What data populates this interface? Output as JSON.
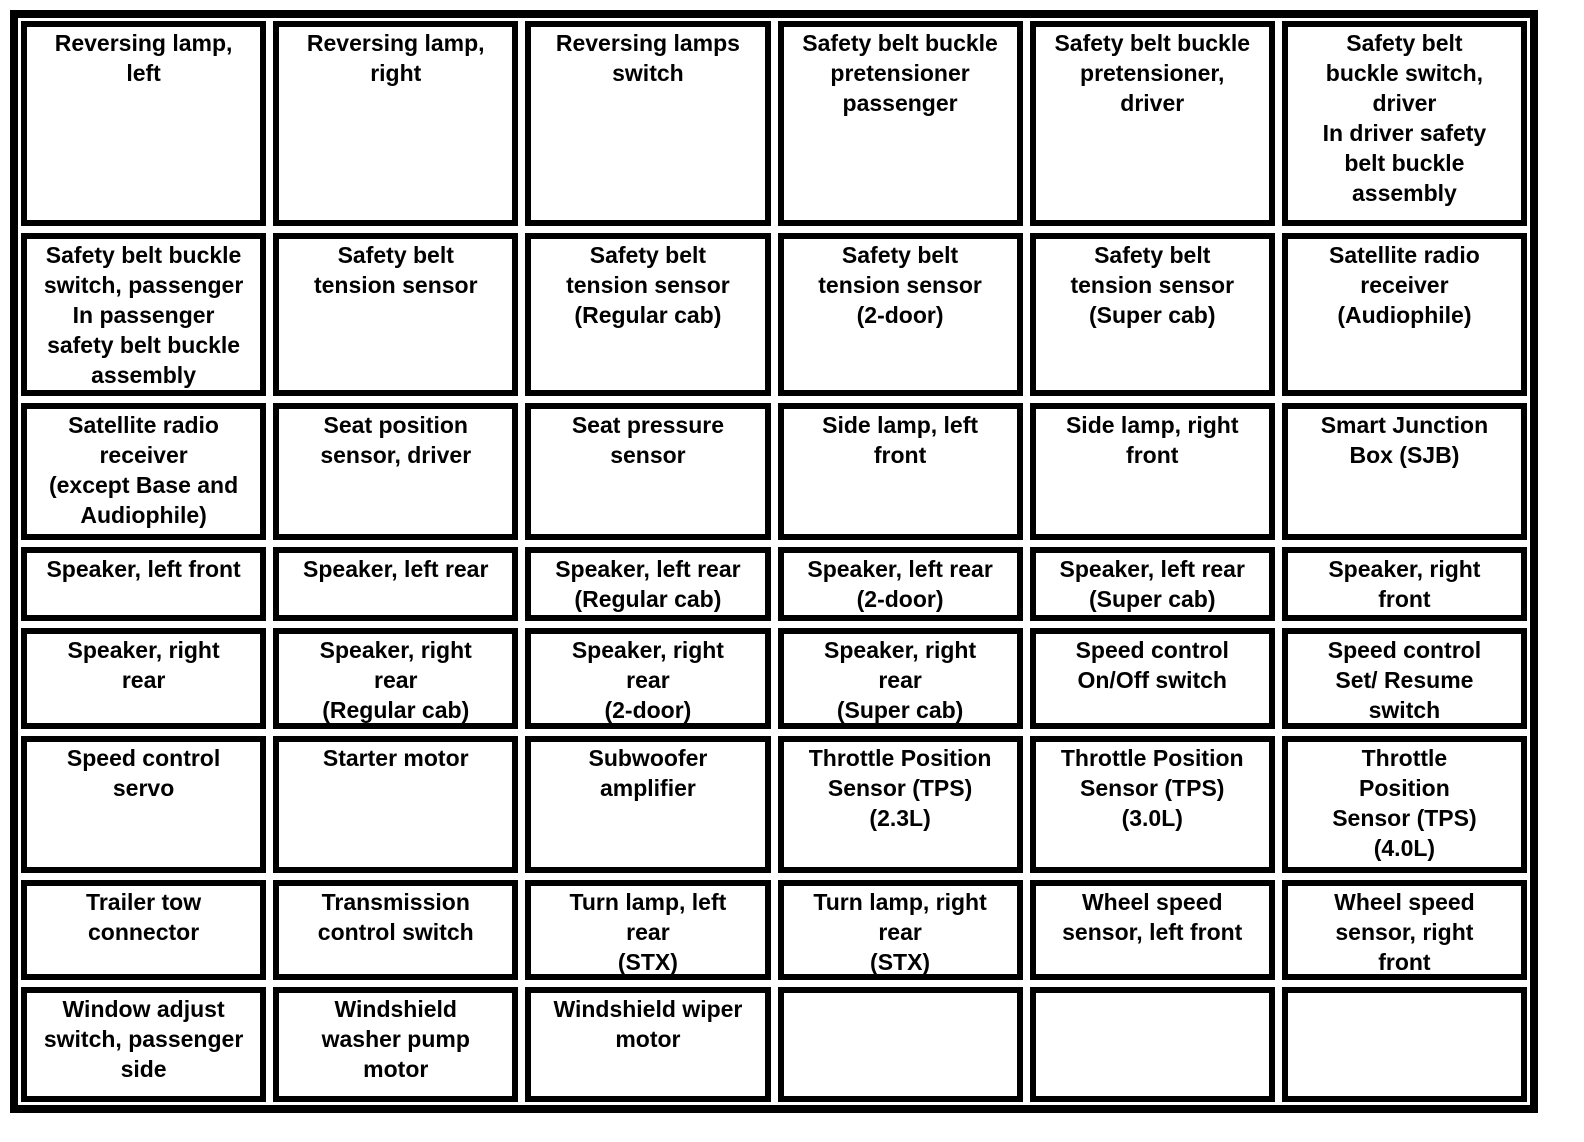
{
  "colors": {
    "frame_border": "#000000",
    "cell_border": "#000000",
    "cell_background": "#ffffff",
    "text": "#000000"
  },
  "table": {
    "rows": [
      {
        "cells": [
          "Reversing lamp,\nleft",
          "Reversing lamp,\nright",
          "Reversing lamps\nswitch",
          "Safety belt buckle\npretensioner\npassenger",
          "Safety belt buckle\npretensioner,\ndriver",
          "Safety belt\nbuckle switch,\ndriver\nIn driver safety\nbelt buckle\nassembly"
        ]
      },
      {
        "cells": [
          "Safety belt buckle\nswitch, passenger\nIn passenger\nsafety belt buckle\nassembly",
          "Safety belt\ntension sensor",
          "Safety belt\ntension sensor\n(Regular cab)",
          "Safety belt\ntension sensor\n(2-door)",
          "Safety belt\ntension sensor\n(Super cab)",
          "Satellite radio\nreceiver\n(Audiophile)"
        ]
      },
      {
        "cells": [
          "Satellite radio\nreceiver\n(except Base and\nAudiophile)",
          "Seat position\nsensor, driver",
          "Seat pressure\nsensor",
          "Side lamp, left\nfront",
          "Side lamp, right\nfront",
          "Smart Junction\nBox (SJB)"
        ]
      },
      {
        "cells": [
          "Speaker, left front",
          "Speaker, left rear",
          "Speaker, left rear\n(Regular cab)",
          "Speaker, left rear\n(2-door)",
          "Speaker, left rear\n(Super cab)",
          "Speaker, right\nfront"
        ]
      },
      {
        "cells": [
          "Speaker, right\nrear",
          "Speaker, right\nrear\n(Regular cab)",
          "Speaker, right\nrear\n(2-door)",
          "Speaker, right\nrear\n(Super cab)",
          "Speed control\nOn/Off switch",
          "Speed control\nSet/ Resume\nswitch"
        ]
      },
      {
        "cells": [
          "Speed control\nservo",
          "Starter motor",
          "Subwoofer\namplifier",
          "Throttle Position\nSensor (TPS)\n(2.3L)",
          "Throttle Position\nSensor (TPS)\n(3.0L)",
          "Throttle\nPosition\nSensor (TPS)\n(4.0L)"
        ]
      },
      {
        "cells": [
          "Trailer tow\nconnector",
          "Transmission\ncontrol switch",
          "Turn lamp, left\nrear\n(STX)",
          "Turn lamp, right\nrear\n(STX)",
          "Wheel speed\nsensor, left front",
          "Wheel speed\nsensor, right\nfront"
        ]
      },
      {
        "cells": [
          "Window adjust\nswitch, passenger\nside",
          "Windshield\nwasher pump\nmotor",
          "Windshield wiper\nmotor",
          "",
          "",
          ""
        ]
      }
    ]
  }
}
